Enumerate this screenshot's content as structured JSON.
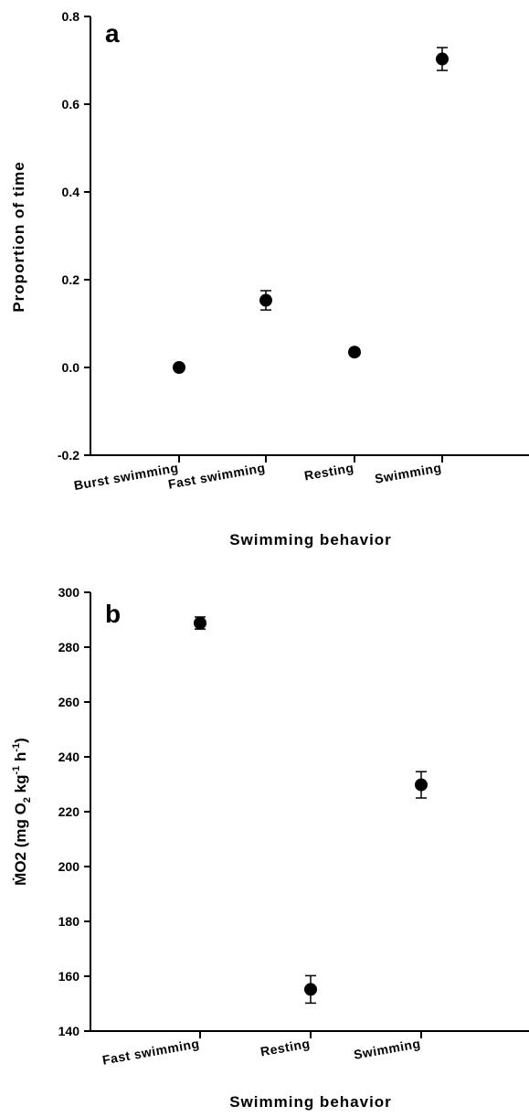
{
  "chart_data": [
    {
      "type": "scatter",
      "panel_letter": "a",
      "xlabel": "Swimming behavior",
      "ylabel": "Proportion of time",
      "ylim": [
        -0.2,
        0.8
      ],
      "yticks": [
        "-0.2",
        "0.0",
        "0.2",
        "0.4",
        "0.6",
        "0.8"
      ],
      "categories": [
        "Burst swimming",
        "Fast swimming",
        "Resting",
        "Swimming"
      ],
      "values": [
        0.0,
        0.153,
        0.035,
        0.703
      ],
      "errors": [
        0.003,
        0.022,
        0.007,
        0.026
      ],
      "grid": false,
      "legend": "none"
    },
    {
      "type": "scatter",
      "panel_letter": "b",
      "xlabel": "Swimming behavior",
      "ylabel": "ṀO2 (mg O2 kg-1 h-1)",
      "ylabel_parts": {
        "main": "ṀO2 (mg O",
        "sub": "2",
        "mid": " kg",
        "sup1": "-1",
        "mid2": " h",
        "sup2": "-1",
        "end": ")"
      },
      "ylim": [
        140,
        300
      ],
      "yticks": [
        "140",
        "160",
        "180",
        "200",
        "220",
        "240",
        "260",
        "280",
        "300"
      ],
      "categories": [
        "Fast swimming",
        "Resting",
        "Swimming"
      ],
      "values": [
        288.8,
        155.2,
        229.8
      ],
      "errors": [
        2.2,
        5.0,
        4.8
      ],
      "grid": false,
      "legend": "none"
    }
  ]
}
